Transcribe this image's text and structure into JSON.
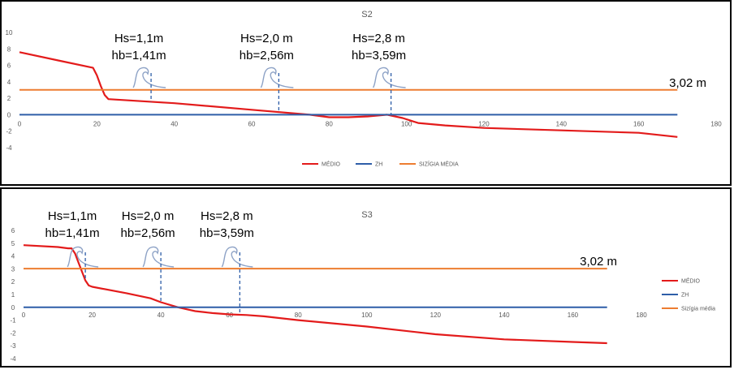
{
  "colors": {
    "medio": "#e31b1b",
    "zh": "#2e5ea8",
    "sizigia": "#ed7d31",
    "wave": "#8da2c6",
    "drop": "#2e5ea8",
    "frame": "#000000"
  },
  "chart_data": [
    {
      "id": "s2",
      "type": "line",
      "title": "S2",
      "xlim": [
        0,
        180
      ],
      "ylim": [
        -4,
        10
      ],
      "xticks": [
        "0",
        "20",
        "40",
        "60",
        "80",
        "100",
        "120",
        "140",
        "160",
        "180"
      ],
      "yticks": [
        "10",
        "8",
        "6",
        "4",
        "2",
        "0",
        "-2",
        "-4"
      ],
      "series": [
        {
          "name": "MÉDIO",
          "color": "#e31b1b",
          "x": [
            0,
            10,
            19,
            20,
            21,
            22,
            23,
            40,
            60,
            75,
            80,
            85,
            90,
            95,
            99,
            103,
            110,
            120,
            140,
            160,
            170
          ],
          "y": [
            7.6,
            6.6,
            5.7,
            4.8,
            3.5,
            2.4,
            1.9,
            1.4,
            0.6,
            0.0,
            -0.3,
            -0.3,
            -0.2,
            0.0,
            -0.4,
            -1.0,
            -1.3,
            -1.6,
            -1.9,
            -2.2,
            -2.7
          ]
        },
        {
          "name": "ZH",
          "color": "#2e5ea8",
          "x": [
            0,
            170
          ],
          "y": [
            0,
            0
          ]
        },
        {
          "name": "SIZÍGIA MÉDIA",
          "color": "#ed7d31",
          "x": [
            0,
            170
          ],
          "y": [
            3.02,
            3.02
          ]
        }
      ],
      "legend_position": "bottom",
      "level_label": "3,02 m",
      "annotations": [
        {
          "hs": "Hs=1,1m",
          "hb": "hb=1,41m",
          "x": 34
        },
        {
          "hs": "Hs=2,0 m",
          "hb": "hb=2,56m",
          "x": 67
        },
        {
          "hs": "Hs=2,8 m",
          "hb": "hb=3,59m",
          "x": 96
        }
      ]
    },
    {
      "id": "s3",
      "type": "line",
      "title": "S3",
      "xlim": [
        0,
        180
      ],
      "ylim": [
        -4,
        6
      ],
      "xticks": [
        "0",
        "20",
        "40",
        "60",
        "80",
        "100",
        "120",
        "140",
        "160",
        "180"
      ],
      "yticks": [
        "6",
        "5",
        "4",
        "3",
        "2",
        "1",
        "0",
        "-1",
        "-2",
        "-3",
        "-4"
      ],
      "series": [
        {
          "name": "MÉDIO",
          "color": "#e31b1b",
          "x": [
            0,
            10,
            13,
            14,
            15,
            16,
            17,
            18,
            19,
            20,
            30,
            37,
            40,
            45,
            50,
            55,
            60,
            65,
            70,
            80,
            100,
            120,
            140,
            160,
            170
          ],
          "y": [
            4.85,
            4.7,
            4.6,
            4.6,
            4.2,
            3.5,
            2.8,
            2.1,
            1.7,
            1.6,
            1.1,
            0.7,
            0.4,
            0.0,
            -0.3,
            -0.45,
            -0.55,
            -0.6,
            -0.7,
            -1.0,
            -1.5,
            -2.1,
            -2.5,
            -2.7,
            -2.8
          ]
        },
        {
          "name": "ZH",
          "color": "#2e5ea8",
          "x": [
            0,
            170
          ],
          "y": [
            0,
            0
          ]
        },
        {
          "name": "Sizígia média",
          "color": "#ed7d31",
          "x": [
            0,
            170
          ],
          "y": [
            3.02,
            3.02
          ]
        }
      ],
      "legend_position": "right",
      "level_label": "3,02 m",
      "annotations": [
        {
          "hs": "Hs=1,1m",
          "hb": "hb=1,41m",
          "x": 18
        },
        {
          "hs": "Hs=2,0 m",
          "hb": "hb=2,56m",
          "x": 40
        },
        {
          "hs": "Hs=2,8 m",
          "hb": "hb=3,59m",
          "x": 63
        }
      ]
    }
  ]
}
